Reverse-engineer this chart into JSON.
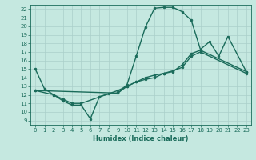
{
  "title": "",
  "xlabel": "Humidex (Indice chaleur)",
  "background_color": "#c5e8e0",
  "grid_color": "#aacfca",
  "line_color": "#1a6b5a",
  "xlim": [
    -0.5,
    23.5
  ],
  "ylim": [
    8.5,
    22.5
  ],
  "xticks": [
    0,
    1,
    2,
    3,
    4,
    5,
    6,
    7,
    8,
    9,
    10,
    11,
    12,
    13,
    14,
    15,
    16,
    17,
    18,
    19,
    20,
    21,
    22,
    23
  ],
  "yticks": [
    9,
    10,
    11,
    12,
    13,
    14,
    15,
    16,
    17,
    18,
    19,
    20,
    21,
    22
  ],
  "line1_x": [
    0,
    1,
    2,
    3,
    4,
    5,
    6,
    7,
    8,
    9,
    10,
    11,
    12,
    13,
    14,
    15,
    16,
    17,
    18,
    19,
    20,
    21,
    23
  ],
  "line1_y": [
    15.0,
    12.7,
    12.0,
    11.3,
    10.8,
    10.8,
    9.2,
    11.8,
    12.1,
    12.2,
    13.2,
    16.5,
    19.9,
    22.1,
    22.2,
    22.2,
    21.7,
    20.7,
    17.3,
    18.2,
    16.5,
    18.8,
    14.7
  ],
  "line2_x": [
    0,
    2,
    3,
    4,
    5,
    9,
    10,
    11,
    12,
    13,
    14,
    15,
    16,
    17,
    18,
    23
  ],
  "line2_y": [
    12.5,
    12.0,
    11.5,
    11.0,
    11.0,
    12.5,
    13.0,
    13.5,
    13.8,
    14.0,
    14.5,
    14.7,
    15.5,
    16.8,
    17.2,
    14.7
  ],
  "line3_x": [
    0,
    9,
    10,
    11,
    12,
    13,
    14,
    15,
    16,
    17,
    18,
    23
  ],
  "line3_y": [
    12.5,
    12.2,
    13.0,
    13.5,
    14.0,
    14.3,
    14.5,
    14.8,
    15.2,
    16.5,
    17.0,
    14.5
  ]
}
